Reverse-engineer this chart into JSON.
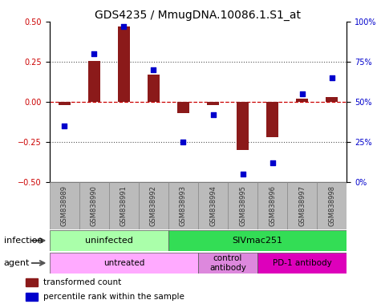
{
  "title": "GDS4235 / MmugDNA.10086.1.S1_at",
  "samples": [
    "GSM838989",
    "GSM838990",
    "GSM838991",
    "GSM838992",
    "GSM838993",
    "GSM838994",
    "GSM838995",
    "GSM838996",
    "GSM838997",
    "GSM838998"
  ],
  "transformed_count": [
    -0.02,
    0.255,
    0.47,
    0.17,
    -0.07,
    -0.02,
    -0.3,
    -0.22,
    0.02,
    0.03
  ],
  "percentile_rank": [
    35,
    80,
    97,
    70,
    25,
    42,
    5,
    12,
    55,
    65
  ],
  "ylim_left": [
    -0.5,
    0.5
  ],
  "ylim_right": [
    0,
    100
  ],
  "yticks_left": [
    -0.5,
    -0.25,
    0,
    0.25,
    0.5
  ],
  "yticks_right": [
    0,
    25,
    50,
    75,
    100
  ],
  "yticklabels_right": [
    "0%",
    "25%",
    "50%",
    "75%",
    "100%"
  ],
  "bar_color": "#8B1A1A",
  "dot_color": "#0000CC",
  "hline_color": "#CC0000",
  "dotted_line_color": "#555555",
  "infection_groups": [
    {
      "label": "uninfected",
      "start": 0,
      "end": 3,
      "color": "#AAFFAA"
    },
    {
      "label": "SIVmac251",
      "start": 4,
      "end": 9,
      "color": "#33DD55"
    }
  ],
  "agent_groups": [
    {
      "label": "untreated",
      "start": 0,
      "end": 4,
      "color": "#FFAAFF"
    },
    {
      "label": "control\nantibody",
      "start": 5,
      "end": 6,
      "color": "#DD88DD"
    },
    {
      "label": "PD-1 antibody",
      "start": 7,
      "end": 9,
      "color": "#DD00BB"
    }
  ],
  "legend_items": [
    {
      "color": "#8B1A1A",
      "label": "transformed count"
    },
    {
      "color": "#0000CC",
      "label": "percentile rank within the sample"
    }
  ],
  "infection_label": "infection",
  "agent_label": "agent",
  "title_fontsize": 10,
  "tick_fontsize": 7,
  "label_fontsize": 8,
  "sample_label_color": "#333333",
  "gray_box_color": "#BBBBBB"
}
